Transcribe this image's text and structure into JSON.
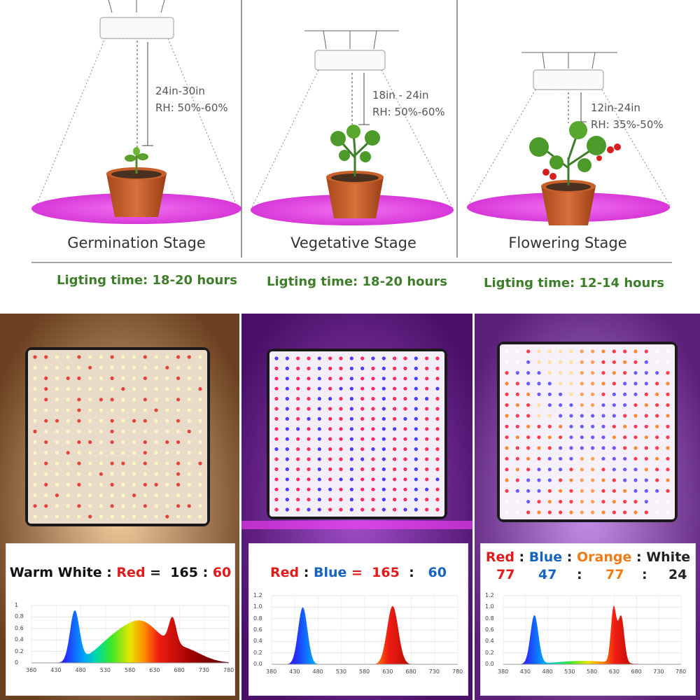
{
  "stages": [
    {
      "title": "Germination Stage",
      "distance": "24in-30in",
      "humidity": "RH: 50%-60%",
      "lighting": "Ligting time: 18-20 hours"
    },
    {
      "title": "Vegetative Stage",
      "distance": "18in - 24in",
      "humidity": "RH: 50%-60%",
      "lighting": "Ligting time: 18-20 hours"
    },
    {
      "title": "Flowering Stage",
      "distance": "12in-24in",
      "humidity": "RH: 35%-50%",
      "lighting": "Ligting time: 12-14 hours"
    }
  ],
  "panels": [
    {
      "ratio_parts": [
        {
          "text": "Warm White",
          "color": "black"
        },
        {
          "text": " : ",
          "color": "black"
        },
        {
          "text": "Red",
          "color": "red"
        },
        {
          "text": " =  165 ",
          "color": "black"
        },
        {
          "text": ": ",
          "color": "black"
        },
        {
          "text": "60",
          "color": "red"
        }
      ],
      "y_ticks": [
        "1",
        "0.8",
        "0.6",
        "0.4",
        "0.2",
        "0"
      ],
      "x_ticks": [
        "360",
        "430",
        "480",
        "530",
        "580",
        "630",
        "680",
        "730",
        "780"
      ]
    },
    {
      "ratio_parts": [
        {
          "text": "Red",
          "color": "red"
        },
        {
          "text": " : ",
          "color": "black"
        },
        {
          "text": "Blue",
          "color": "blue"
        },
        {
          "text": " = ",
          "color": "red"
        },
        {
          "text": " 165 ",
          "color": "red"
        },
        {
          "text": " : ",
          "color": "black"
        },
        {
          "text": "  60",
          "color": "blue"
        }
      ],
      "y_ticks": [
        "1.2",
        "1.0",
        "0.8",
        "0.6",
        "0.4",
        "0.2",
        "0.0"
      ],
      "x_ticks": [
        "380",
        "430",
        "480",
        "530",
        "580",
        "630",
        "680",
        "730",
        "780"
      ]
    },
    {
      "ratio_parts": [
        {
          "text": "Red",
          "color": "red"
        },
        {
          "text": " : ",
          "color": "black"
        },
        {
          "text": "Blue",
          "color": "blue"
        },
        {
          "text": " : ",
          "color": "black"
        },
        {
          "text": "Orange",
          "color": "orange"
        },
        {
          "text": " : ",
          "color": "black"
        },
        {
          "text": "White",
          "color": "dark"
        }
      ],
      "ratio_values": [
        "77",
        "47",
        ":",
        "77",
        ":",
        "24"
      ],
      "y_ticks": [
        "1.2",
        "1.0",
        "0.8",
        "0.6",
        "0.4",
        "0.2",
        "0.0"
      ],
      "x_ticks": [
        "380",
        "430",
        "480",
        "530",
        "580",
        "630",
        "680",
        "730",
        "780"
      ]
    }
  ],
  "colors": {
    "grow_light_pink": "#e040e0",
    "pot": "#c8602a",
    "green_text": "#3e7d2a",
    "red": "#e01b1b",
    "blue": "#1565c0",
    "orange": "#f07a14"
  }
}
